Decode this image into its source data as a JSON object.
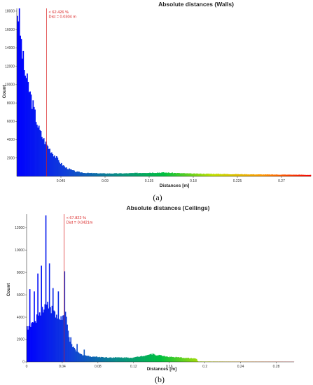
{
  "chart_data": [
    {
      "type": "bar",
      "title": "Absolute distances (Walls)",
      "xlabel": "Distances [m]",
      "ylabel": "Count",
      "caption": "(a)",
      "xlim": [
        0,
        0.3
      ],
      "ylim": [
        0,
        18300
      ],
      "xticks": [
        0.045,
        0.09,
        0.135,
        0.18,
        0.225,
        0.27
      ],
      "xtick_labels": [
        "0.045",
        "0.09",
        "0.135",
        "0.18",
        "0.225",
        "0.27"
      ],
      "yticks": [
        2000,
        4000,
        6000,
        8000,
        10000,
        12000,
        14000,
        16000,
        18000
      ],
      "ytick_labels": [
        "2000",
        "4000",
        "6000",
        "8000",
        "10000",
        "12000",
        "14000",
        "16000",
        "18000"
      ],
      "color_scale": [
        "#0000ff",
        "#1040d8",
        "#0a8a8a",
        "#00c040",
        "#c0e000",
        "#ff9900",
        "#ff0000"
      ],
      "marker_color": "#d81b1b",
      "histogram": {
        "bin_width": 0.001,
        "keypoints": [
          [
            0.0005,
            18100
          ],
          [
            0.002,
            17800
          ],
          [
            0.004,
            15000
          ],
          [
            0.007,
            12000
          ],
          [
            0.01,
            10500
          ],
          [
            0.014,
            8800
          ],
          [
            0.018,
            7000
          ],
          [
            0.022,
            5300
          ],
          [
            0.026,
            4300
          ],
          [
            0.029,
            3700
          ],
          [
            0.032,
            3200
          ],
          [
            0.036,
            2600
          ],
          [
            0.04,
            2100
          ],
          [
            0.045,
            1400
          ],
          [
            0.05,
            950
          ],
          [
            0.06,
            520
          ],
          [
            0.07,
            380
          ],
          [
            0.09,
            320
          ],
          [
            0.11,
            330
          ],
          [
            0.13,
            400
          ],
          [
            0.15,
            420
          ],
          [
            0.18,
            300
          ],
          [
            0.2,
            280
          ],
          [
            0.225,
            240
          ],
          [
            0.26,
            200
          ],
          [
            0.29,
            180
          ],
          [
            0.3,
            160
          ]
        ]
      },
      "annotation": {
        "x": 0.0304,
        "lines": [
          "< 62.426 %",
          "Dist = 0.0304 m"
        ]
      }
    },
    {
      "type": "bar",
      "title": "Absolute distances (Ceilings)",
      "xlabel": "Distances [m]",
      "ylabel": "Count",
      "caption": "(b)",
      "xlim": [
        0,
        0.3
      ],
      "ylim": [
        0,
        13200
      ],
      "xticks": [
        0,
        0.04,
        0.08,
        0.12,
        0.16,
        0.2,
        0.24,
        0.28
      ],
      "xtick_labels": [
        "0",
        "0.04",
        "0.08",
        "0.12",
        "0.16",
        "0.2",
        "0.24",
        "0.28"
      ],
      "yticks": [
        0,
        2000,
        4000,
        6000,
        8000,
        10000,
        12000
      ],
      "ytick_labels": [
        "0",
        "2000",
        "4000",
        "6000",
        "8000",
        "10000",
        "12000"
      ],
      "color_scale": [
        "#0000ff",
        "#1040d8",
        "#0a8a8a",
        "#00c040",
        "#c0e000",
        "#ff9900",
        "#ff0000"
      ],
      "marker_color": "#d81b1b",
      "histogram": {
        "bin_width": 0.001,
        "keypoints": [
          [
            0,
            3100
          ],
          [
            0.005,
            3300
          ],
          [
            0.01,
            3800
          ],
          [
            0.015,
            4400
          ],
          [
            0.02,
            5000
          ],
          [
            0.025,
            5200
          ],
          [
            0.03,
            4400
          ],
          [
            0.035,
            3800
          ],
          [
            0.04,
            4000
          ],
          [
            0.044,
            4100
          ],
          [
            0.047,
            2400
          ],
          [
            0.05,
            1500
          ],
          [
            0.055,
            1000
          ],
          [
            0.06,
            700
          ],
          [
            0.07,
            500
          ],
          [
            0.09,
            400
          ],
          [
            0.12,
            380
          ],
          [
            0.14,
            700
          ],
          [
            0.16,
            450
          ],
          [
            0.18,
            350
          ],
          [
            0.19,
            300
          ],
          [
            0.192,
            40
          ],
          [
            0.3,
            10
          ]
        ],
        "spikes": [
          [
            0.003,
            6500
          ],
          [
            0.008,
            6300
          ],
          [
            0.012,
            7900
          ],
          [
            0.016,
            8600
          ],
          [
            0.021,
            13100
          ],
          [
            0.025,
            8800
          ],
          [
            0.029,
            6600
          ],
          [
            0.035,
            6300
          ],
          [
            0.042,
            8100
          ],
          [
            0.049,
            2200
          ],
          [
            0.056,
            1600
          ],
          [
            0.064,
            1100
          ]
        ]
      },
      "annotation": {
        "x": 0.0421,
        "lines": [
          "< 67.822 %",
          "Dist = 0.0421m"
        ]
      }
    }
  ]
}
